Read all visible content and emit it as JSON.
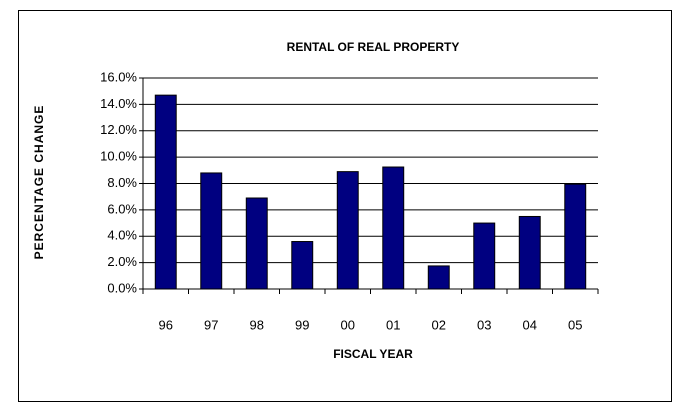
{
  "chart_data": {
    "type": "bar",
    "title": "RENTAL OF REAL PROPERTY",
    "x_label": "FISCAL YEAR",
    "y_label": "PERCENTAGE CHANGE",
    "categories": [
      "96",
      "97",
      "98",
      "99",
      "00",
      "01",
      "02",
      "03",
      "04",
      "05"
    ],
    "values": [
      14.7,
      8.8,
      6.9,
      3.6,
      8.9,
      9.25,
      1.75,
      5.0,
      5.5,
      7.95
    ],
    "color": "#000080",
    "ylim": [
      0,
      16
    ],
    "yticks": [
      {
        "value": 0,
        "label": "0.0%"
      },
      {
        "value": 2,
        "label": "2.0%"
      },
      {
        "value": 4,
        "label": "4.0%"
      },
      {
        "value": 6,
        "label": "6.0%"
      },
      {
        "value": 8,
        "label": "8.0%"
      },
      {
        "value": 10,
        "label": "10.0%"
      },
      {
        "value": 12,
        "label": "12.0%"
      },
      {
        "value": 14,
        "label": "14.0%"
      },
      {
        "value": 16,
        "label": "16.0%"
      }
    ],
    "grid": true
  }
}
